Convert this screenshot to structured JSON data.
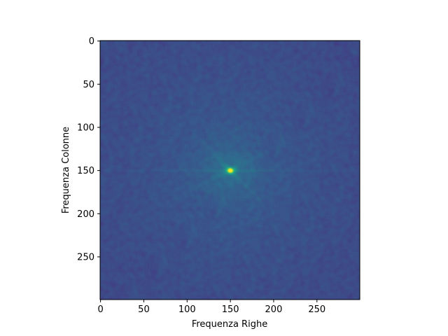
{
  "chart_data": {
    "type": "heatmap",
    "title": "",
    "xlabel": "Frequenza Righe",
    "ylabel": "Frequenza Colonne",
    "xlim": [
      -0.5,
      299.5
    ],
    "ylim": [
      299.5,
      -0.5
    ],
    "y_inverted": true,
    "x_ticks": [
      0,
      50,
      100,
      150,
      200,
      250
    ],
    "y_ticks": [
      0,
      50,
      100,
      150,
      200,
      250
    ],
    "grid": false,
    "legend": "none",
    "colormap": "viridis",
    "image_size": [
      300,
      300
    ],
    "peak": {
      "x": 150,
      "y": 150
    },
    "features": "bright central peak with faint horizontal line at row 150 and faint diagonal streaks through the centre on a noisy dark background"
  },
  "colors": {
    "background_low": "#46317e",
    "background_mid": "#3b528b",
    "peak": "#fde725",
    "axis": "#000000"
  }
}
